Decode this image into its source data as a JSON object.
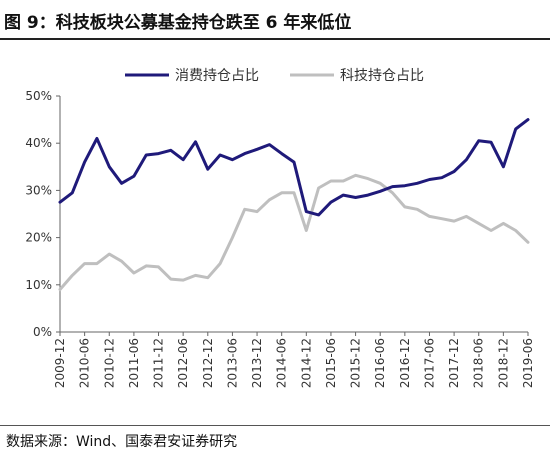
{
  "figure": {
    "title": "图 9：科技板块公募基金持仓跌至 6 年来低位",
    "source": "数据来源：Wind、国泰君安证券研究"
  },
  "chart_data": {
    "type": "line",
    "title": "",
    "xlabel": "",
    "ylabel": "",
    "ylim": [
      0,
      50
    ],
    "y_ticks": [
      "0%",
      "10%",
      "20%",
      "30%",
      "40%",
      "50%"
    ],
    "x_tick_labels": [
      "2009-12",
      "2010-06",
      "2010-12",
      "2011-06",
      "2011-12",
      "2012-06",
      "2012-12",
      "2013-06",
      "2013-12",
      "2014-06",
      "2014-12",
      "2015-06",
      "2015-12",
      "2016-06",
      "2016-12",
      "2017-06",
      "2017-12",
      "2018-06",
      "2018-12",
      "2019-06"
    ],
    "legend_position": "top-center",
    "grid": false,
    "series": [
      {
        "name": "消费持仓占比",
        "color": "#1f1a7a",
        "x": [
          "2009-12",
          "2010-03",
          "2010-06",
          "2010-09",
          "2010-12",
          "2011-03",
          "2011-06",
          "2011-09",
          "2011-12",
          "2012-03",
          "2012-06",
          "2012-09",
          "2012-12",
          "2013-03",
          "2013-06",
          "2013-09",
          "2013-12",
          "2014-03",
          "2014-06",
          "2014-09",
          "2014-12",
          "2015-03",
          "2015-06",
          "2015-09",
          "2015-12",
          "2016-03",
          "2016-06",
          "2016-09",
          "2016-12",
          "2017-03",
          "2017-06",
          "2017-09",
          "2017-12",
          "2018-03",
          "2018-06",
          "2018-09",
          "2018-12",
          "2019-03",
          "2019-06"
        ],
        "values": [
          27.5,
          29.5,
          36,
          41,
          35,
          31.5,
          33,
          37.5,
          37.8,
          38.5,
          36.5,
          40.3,
          34.5,
          37.5,
          36.5,
          37.8,
          38.7,
          39.7,
          37.8,
          36,
          25.5,
          24.8,
          27.5,
          29,
          28.5,
          29,
          29.8,
          30.8,
          31,
          31.5,
          32.3,
          32.7,
          34,
          36.5,
          40.5,
          40.2,
          35,
          43,
          45
        ]
      },
      {
        "name": "科技持仓占比",
        "color": "#bfbfbf",
        "x": [
          "2009-12",
          "2010-03",
          "2010-06",
          "2010-09",
          "2010-12",
          "2011-03",
          "2011-06",
          "2011-09",
          "2011-12",
          "2012-03",
          "2012-06",
          "2012-09",
          "2012-12",
          "2013-03",
          "2013-06",
          "2013-09",
          "2013-12",
          "2014-03",
          "2014-06",
          "2014-09",
          "2014-12",
          "2015-03",
          "2015-06",
          "2015-09",
          "2015-12",
          "2016-03",
          "2016-06",
          "2016-09",
          "2016-12",
          "2017-03",
          "2017-06",
          "2017-09",
          "2017-12",
          "2018-03",
          "2018-06",
          "2018-09",
          "2018-12",
          "2019-03",
          "2019-06"
        ],
        "values": [
          9,
          12,
          14.5,
          14.5,
          16.5,
          15,
          12.5,
          14,
          13.8,
          11.2,
          11,
          12,
          11.5,
          14.5,
          20,
          26,
          25.5,
          28,
          29.5,
          29.5,
          21.5,
          30.5,
          32,
          32,
          33.2,
          32.5,
          31.5,
          29.5,
          26.5,
          26,
          24.5,
          24,
          23.5,
          24.5,
          23,
          21.5,
          23,
          21.5,
          19
        ]
      }
    ]
  }
}
